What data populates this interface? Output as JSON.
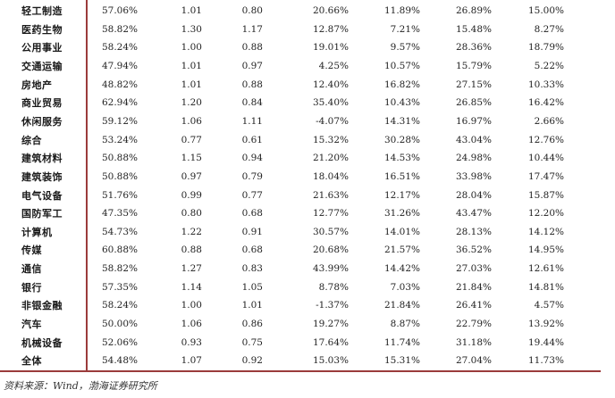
{
  "table": {
    "rows": [
      {
        "name": "轻工制造",
        "c1": "57.06%",
        "c2": "1.01",
        "c3": "0.80",
        "c4": "20.66%",
        "c5": "11.89%",
        "c6": "26.89%",
        "c7": "15.00%"
      },
      {
        "name": "医药生物",
        "c1": "58.82%",
        "c2": "1.30",
        "c3": "1.17",
        "c4": "12.87%",
        "c5": "7.21%",
        "c6": "15.48%",
        "c7": "8.27%"
      },
      {
        "name": "公用事业",
        "c1": "58.24%",
        "c2": "1.00",
        "c3": "0.88",
        "c4": "19.01%",
        "c5": "9.57%",
        "c6": "28.36%",
        "c7": "18.79%"
      },
      {
        "name": "交通运输",
        "c1": "47.94%",
        "c2": "1.01",
        "c3": "0.97",
        "c4": "4.25%",
        "c5": "10.57%",
        "c6": "15.79%",
        "c7": "5.22%"
      },
      {
        "name": "房地产",
        "c1": "48.82%",
        "c2": "1.01",
        "c3": "0.88",
        "c4": "12.40%",
        "c5": "16.82%",
        "c6": "27.15%",
        "c7": "10.33%"
      },
      {
        "name": "商业贸易",
        "c1": "62.94%",
        "c2": "1.20",
        "c3": "0.84",
        "c4": "35.40%",
        "c5": "10.43%",
        "c6": "26.85%",
        "c7": "16.42%"
      },
      {
        "name": "休闲服务",
        "c1": "59.12%",
        "c2": "1.06",
        "c3": "1.11",
        "c4": "-4.07%",
        "c5": "14.31%",
        "c6": "16.97%",
        "c7": "2.66%"
      },
      {
        "name": "综合",
        "c1": "53.24%",
        "c2": "0.77",
        "c3": "0.61",
        "c4": "15.32%",
        "c5": "30.28%",
        "c6": "43.04%",
        "c7": "12.76%"
      },
      {
        "name": "建筑材料",
        "c1": "50.88%",
        "c2": "1.15",
        "c3": "0.94",
        "c4": "21.20%",
        "c5": "14.53%",
        "c6": "24.98%",
        "c7": "10.44%"
      },
      {
        "name": "建筑装饰",
        "c1": "50.88%",
        "c2": "0.97",
        "c3": "0.79",
        "c4": "18.04%",
        "c5": "16.51%",
        "c6": "33.98%",
        "c7": "17.47%"
      },
      {
        "name": "电气设备",
        "c1": "51.76%",
        "c2": "0.99",
        "c3": "0.77",
        "c4": "21.63%",
        "c5": "12.17%",
        "c6": "28.04%",
        "c7": "15.87%"
      },
      {
        "name": "国防军工",
        "c1": "47.35%",
        "c2": "0.80",
        "c3": "0.68",
        "c4": "12.77%",
        "c5": "31.26%",
        "c6": "43.47%",
        "c7": "12.20%"
      },
      {
        "name": "计算机",
        "c1": "54.73%",
        "c2": "1.22",
        "c3": "0.91",
        "c4": "30.57%",
        "c5": "14.01%",
        "c6": "28.13%",
        "c7": "14.12%"
      },
      {
        "name": "传媒",
        "c1": "60.88%",
        "c2": "0.88",
        "c3": "0.68",
        "c4": "20.68%",
        "c5": "21.57%",
        "c6": "36.52%",
        "c7": "14.95%"
      },
      {
        "name": "通信",
        "c1": "58.82%",
        "c2": "1.27",
        "c3": "0.83",
        "c4": "43.99%",
        "c5": "14.42%",
        "c6": "27.03%",
        "c7": "12.61%"
      },
      {
        "name": "银行",
        "c1": "57.35%",
        "c2": "1.14",
        "c3": "1.05",
        "c4": "8.78%",
        "c5": "7.03%",
        "c6": "21.84%",
        "c7": "14.81%"
      },
      {
        "name": "非银金融",
        "c1": "58.24%",
        "c2": "1.00",
        "c3": "1.01",
        "c4": "-1.37%",
        "c5": "21.84%",
        "c6": "26.41%",
        "c7": "4.57%"
      },
      {
        "name": "汽车",
        "c1": "50.00%",
        "c2": "1.06",
        "c3": "0.86",
        "c4": "19.27%",
        "c5": "8.87%",
        "c6": "22.79%",
        "c7": "13.92%"
      },
      {
        "name": "机械设备",
        "c1": "52.06%",
        "c2": "0.93",
        "c3": "0.75",
        "c4": "17.64%",
        "c5": "11.74%",
        "c6": "31.18%",
        "c7": "19.44%"
      },
      {
        "name": "全体",
        "c1": "54.48%",
        "c2": "1.07",
        "c3": "0.92",
        "c4": "15.03%",
        "c5": "15.31%",
        "c6": "27.04%",
        "c7": "11.73%"
      }
    ]
  },
  "source_note": "资料来源：Wind，渤海证券研究所",
  "colors": {
    "rule": "#9b3b3b",
    "text": "#222222"
  }
}
